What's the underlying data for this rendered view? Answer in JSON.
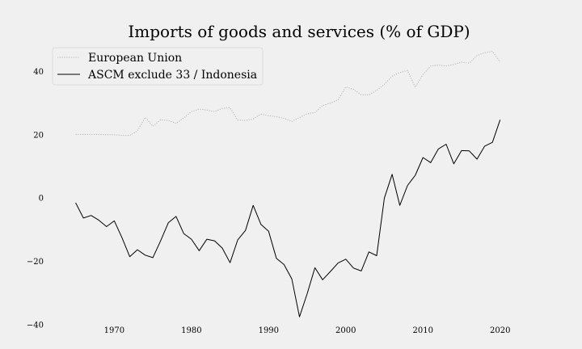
{
  "chart_data": {
    "type": "line",
    "title": "Imports of goods and services (% of GDP)",
    "xlabel": "",
    "ylabel": "",
    "xlim": [
      1962,
      2026
    ],
    "ylim": [
      -40,
      48
    ],
    "x_ticks": [
      1970,
      1980,
      1990,
      2000,
      2010,
      2020
    ],
    "y_ticks": [
      -40,
      -20,
      0,
      20,
      40
    ],
    "y_tick_labels": [
      "−40",
      "−20",
      "0",
      "20",
      "40"
    ],
    "grid": false,
    "legend_position": "top-left",
    "x": [
      1965,
      1966,
      1967,
      1968,
      1969,
      1970,
      1971,
      1972,
      1973,
      1974,
      1975,
      1976,
      1977,
      1978,
      1979,
      1980,
      1981,
      1982,
      1983,
      1984,
      1985,
      1986,
      1987,
      1988,
      1989,
      1990,
      1991,
      1992,
      1993,
      1994,
      1995,
      1996,
      1997,
      1998,
      1999,
      2000,
      2001,
      2002,
      2003,
      2004,
      2005,
      2006,
      2007,
      2008,
      2009,
      2010,
      2011,
      2012,
      2013,
      2014,
      2015,
      2016,
      2017,
      2018,
      2019,
      2020
    ],
    "series": [
      {
        "name": "European Union",
        "color": "#b3b3b3",
        "dash": "dotted",
        "values": [
          20.1,
          20.1,
          20.1,
          20.1,
          20.0,
          20.0,
          19.8,
          19.8,
          21.2,
          25.5,
          22.7,
          24.7,
          24.5,
          23.6,
          25.3,
          27.3,
          28.1,
          27.8,
          27.3,
          28.3,
          28.5,
          24.6,
          24.5,
          25.0,
          26.5,
          26.0,
          25.7,
          25.2,
          24.2,
          25.4,
          26.6,
          27.0,
          29.2,
          30.0,
          31.0,
          35.1,
          34.3,
          32.6,
          32.6,
          34.0,
          35.9,
          38.5,
          39.6,
          40.3,
          35.0,
          39.0,
          41.7,
          42.0,
          41.7,
          42.2,
          42.9,
          42.6,
          45.0,
          45.9,
          46.3,
          43.0
        ]
      },
      {
        "name": "ASCM exclude 33 / Indonesia",
        "color": "#000000",
        "dash": "solid",
        "values": [
          -1.5,
          -6.3,
          -5.5,
          -7.0,
          -9.0,
          -7.2,
          -12.5,
          -18.5,
          -16.3,
          -18.0,
          -18.8,
          -13.5,
          -7.8,
          -5.8,
          -11.2,
          -13.0,
          -16.6,
          -13.0,
          -13.5,
          -15.8,
          -20.4,
          -13.2,
          -10.2,
          -2.3,
          -8.3,
          -10.5,
          -19.0,
          -21.0,
          -25.5,
          -37.5,
          -30.2,
          -22.0,
          -25.8,
          -23.2,
          -20.5,
          -19.3,
          -22.1,
          -23.0,
          -17.0,
          -18.2,
          0.0,
          7.5,
          -2.3,
          4.0,
          7.2,
          12.8,
          11.2,
          15.5,
          17.0,
          10.8,
          15.0,
          14.9,
          12.3,
          16.4,
          17.6,
          24.7
        ]
      }
    ]
  }
}
